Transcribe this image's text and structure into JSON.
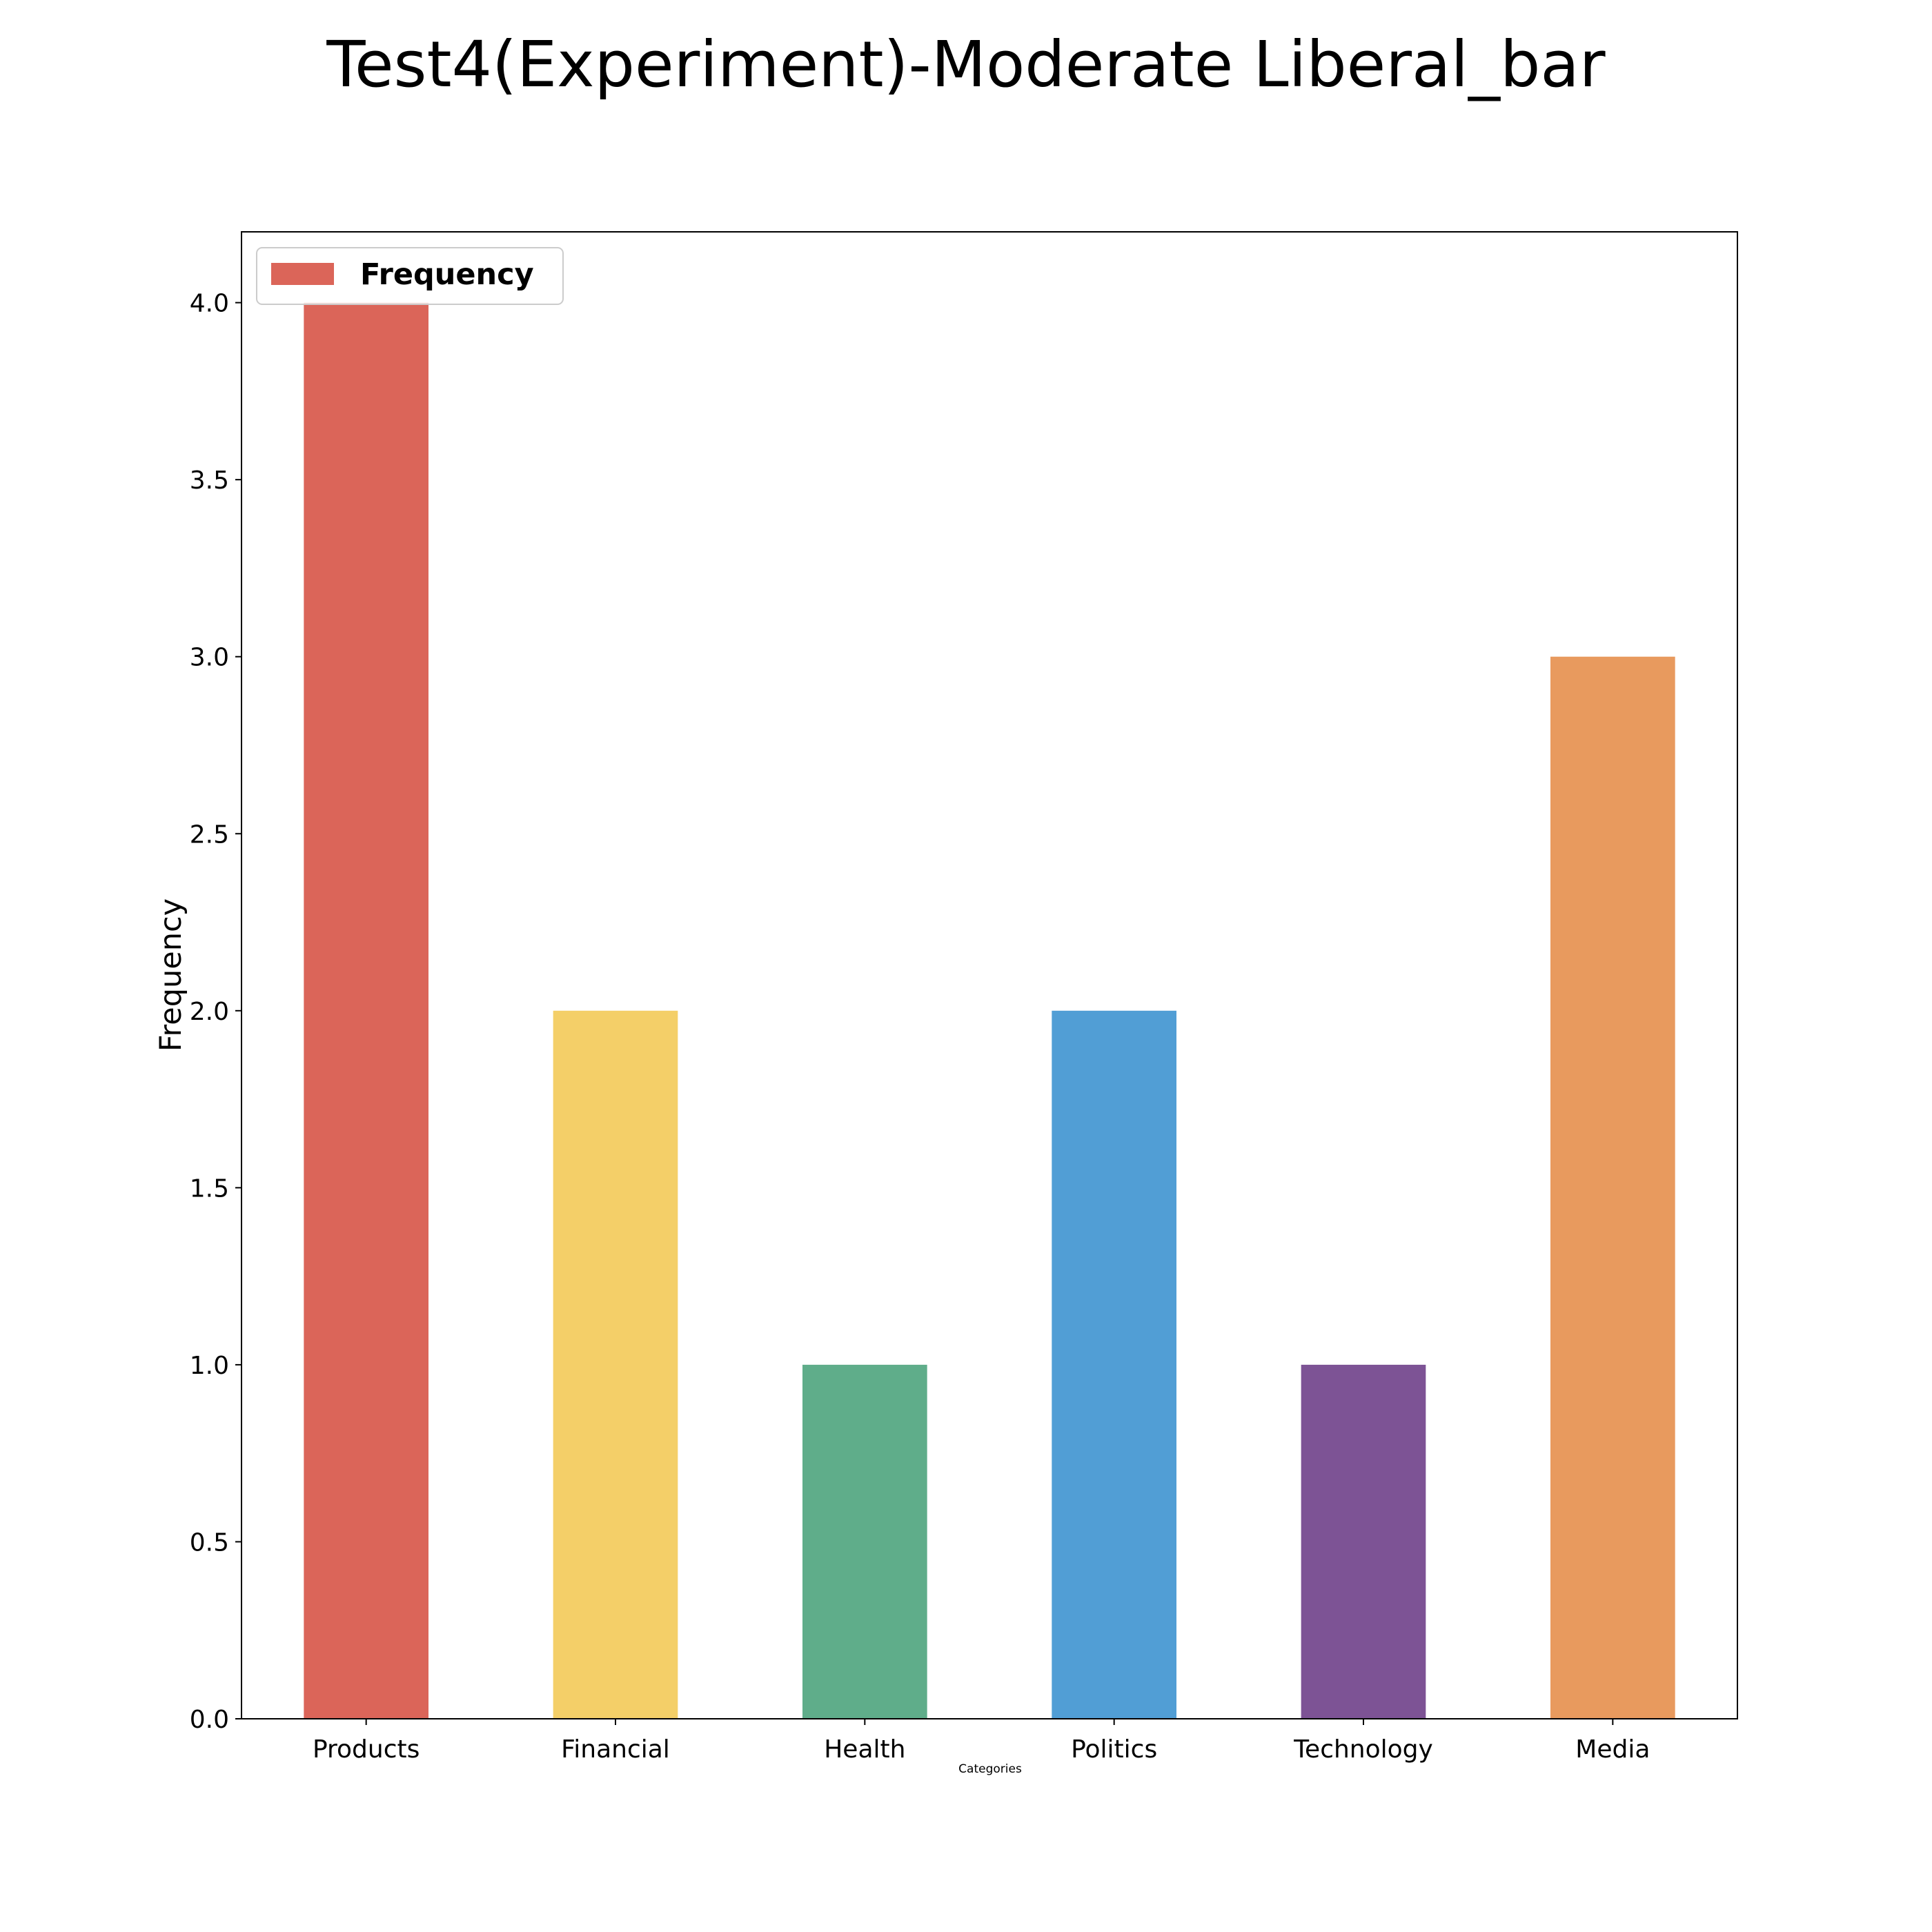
{
  "chart_data": {
    "type": "bar",
    "title": "Test4(Experiment)-Moderate Liberal_bar",
    "xlabel": "Categories",
    "ylabel": "Frequency",
    "categories": [
      "Products",
      "Financial",
      "Health",
      "Politics",
      "Technology",
      "Media"
    ],
    "values": [
      4,
      2,
      1,
      2,
      1,
      3
    ],
    "colors": [
      "#DB6559",
      "#F4CF68",
      "#5FAD8A",
      "#519ED5",
      "#7D5395",
      "#E89A5E"
    ],
    "ylim": [
      0,
      4.2
    ],
    "yticks": [
      0.0,
      0.5,
      1.0,
      1.5,
      2.0,
      2.5,
      3.0,
      3.5,
      4.0
    ],
    "ytick_labels": [
      "0.0",
      "0.5",
      "1.0",
      "1.5",
      "2.0",
      "2.5",
      "3.0",
      "3.5",
      "4.0"
    ],
    "grid": false,
    "legend": {
      "label": "Frequency",
      "color": "#DB6559",
      "placement": "top-left"
    }
  }
}
